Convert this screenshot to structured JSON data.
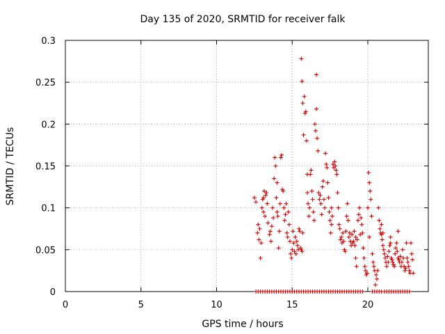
{
  "chart_data": {
    "type": "scatter",
    "title": "Day 135 of 2020, SRMTID for receiver falk",
    "xlabel": "GPS time / hours",
    "ylabel": "SRMTID / TECUs",
    "xlim": [
      0,
      24
    ],
    "ylim": [
      0,
      0.3
    ],
    "xticks": [
      0,
      5,
      10,
      15,
      20
    ],
    "xtick_labels": [
      "0",
      "5",
      "10",
      "15",
      "20"
    ],
    "yticks": [
      0,
      0.05,
      0.1,
      0.15,
      0.2,
      0.25,
      0.3
    ],
    "ytick_labels": [
      "0",
      "0.05",
      "0.1",
      "0.15",
      "0.2",
      "0.25",
      "0.3"
    ],
    "grid": true,
    "marker": "+",
    "color": "#cc0000",
    "series": [
      {
        "name": "SRMTID",
        "points": [
          [
            12.5,
            0.112
          ],
          [
            12.6,
            0.107
          ],
          [
            12.7,
            0.07
          ],
          [
            12.75,
            0.08
          ],
          [
            12.8,
            0.062
          ],
          [
            12.85,
            0.075
          ],
          [
            12.9,
            0.04
          ],
          [
            12.95,
            0.058
          ],
          [
            13.0,
            0.1
          ],
          [
            13.05,
            0.11
          ],
          [
            13.1,
            0.095
          ],
          [
            13.15,
            0.12
          ],
          [
            13.2,
            0.09
          ],
          [
            13.25,
            0.115
          ],
          [
            13.3,
            0.118
          ],
          [
            13.35,
            0.105
          ],
          [
            13.4,
            0.082
          ],
          [
            13.5,
            0.068
          ],
          [
            13.55,
            0.072
          ],
          [
            13.6,
            0.06
          ],
          [
            13.65,
            0.078
          ],
          [
            13.7,
            0.1
          ],
          [
            13.75,
            0.088
          ],
          [
            13.8,
            0.135
          ],
          [
            13.85,
            0.16
          ],
          [
            13.9,
            0.15
          ],
          [
            13.95,
            0.112
          ],
          [
            14.0,
            0.095
          ],
          [
            14.05,
            0.09
          ],
          [
            14.1,
            0.052
          ],
          [
            14.15,
            0.072
          ],
          [
            14.2,
            0.105
          ],
          [
            14.25,
            0.16
          ],
          [
            14.3,
            0.163
          ],
          [
            14.35,
            0.122
          ],
          [
            14.4,
            0.12
          ],
          [
            14.45,
            0.1
          ],
          [
            14.5,
            0.085
          ],
          [
            14.55,
            0.092
          ],
          [
            14.6,
            0.105
          ],
          [
            14.65,
            0.07
          ],
          [
            14.7,
            0.065
          ],
          [
            14.75,
            0.095
          ],
          [
            14.8,
            0.08
          ],
          [
            14.85,
            0.06
          ],
          [
            14.9,
            0.045
          ],
          [
            14.95,
            0.04
          ],
          [
            15.0,
            0.05
          ],
          [
            15.05,
            0.072
          ],
          [
            15.1,
            0.058
          ],
          [
            15.15,
            0.048
          ],
          [
            15.2,
            0.065
          ],
          [
            15.25,
            0.045
          ],
          [
            15.3,
            0.06
          ],
          [
            15.35,
            0.055
          ],
          [
            15.4,
            0.05
          ],
          [
            15.45,
            0.075
          ],
          [
            15.5,
            0.072
          ],
          [
            15.55,
            0.052
          ],
          [
            15.6,
            0.05
          ],
          [
            15.65,
            0.048
          ],
          [
            15.7,
            0.07
          ],
          [
            15.6,
            0.278
          ],
          [
            15.65,
            0.251
          ],
          [
            15.7,
            0.225
          ],
          [
            15.75,
            0.187
          ],
          [
            15.8,
            0.233
          ],
          [
            15.85,
            0.213
          ],
          [
            15.9,
            0.215
          ],
          [
            15.95,
            0.18
          ],
          [
            16.0,
            0.118
          ],
          [
            16.05,
            0.105
          ],
          [
            16.1,
            0.09
          ],
          [
            16.15,
            0.1
          ],
          [
            16.2,
            0.14
          ],
          [
            16.25,
            0.145
          ],
          [
            16.3,
            0.12
          ],
          [
            16.35,
            0.11
          ],
          [
            16.4,
            0.095
          ],
          [
            16.45,
            0.085
          ],
          [
            16.5,
            0.2
          ],
          [
            16.55,
            0.192
          ],
          [
            16.6,
            0.218
          ],
          [
            16.6,
            0.259
          ],
          [
            16.65,
            0.183
          ],
          [
            16.7,
            0.168
          ],
          [
            16.75,
            0.118
          ],
          [
            16.8,
            0.11
          ],
          [
            16.85,
            0.115
          ],
          [
            16.9,
            0.105
          ],
          [
            16.95,
            0.092
          ],
          [
            17.0,
            0.125
          ],
          [
            17.05,
            0.132
          ],
          [
            17.1,
            0.11
          ],
          [
            17.15,
            0.1
          ],
          [
            17.2,
            0.165
          ],
          [
            17.25,
            0.152
          ],
          [
            17.3,
            0.148
          ],
          [
            17.35,
            0.13
          ],
          [
            17.4,
            0.112
          ],
          [
            17.45,
            0.095
          ],
          [
            17.5,
            0.085
          ],
          [
            17.55,
            0.07
          ],
          [
            17.6,
            0.08
          ],
          [
            17.65,
            0.09
          ],
          [
            17.7,
            0.152
          ],
          [
            17.75,
            0.148
          ],
          [
            17.8,
            0.155
          ],
          [
            17.85,
            0.15
          ],
          [
            17.9,
            0.145
          ],
          [
            17.95,
            0.14
          ],
          [
            18.0,
            0.118
          ],
          [
            18.05,
            0.1
          ],
          [
            18.1,
            0.08
          ],
          [
            18.15,
            0.075
          ],
          [
            18.2,
            0.062
          ],
          [
            18.25,
            0.065
          ],
          [
            18.3,
            0.058
          ],
          [
            18.35,
            0.07
          ],
          [
            18.4,
            0.06
          ],
          [
            18.45,
            0.05
          ],
          [
            18.5,
            0.048
          ],
          [
            18.55,
            0.072
          ],
          [
            18.6,
            0.09
          ],
          [
            18.65,
            0.105
          ],
          [
            18.7,
            0.085
          ],
          [
            18.75,
            0.065
          ],
          [
            18.8,
            0.07
          ],
          [
            18.85,
            0.06
          ],
          [
            18.9,
            0.055
          ],
          [
            18.95,
            0.068
          ],
          [
            19.0,
            0.058
          ],
          [
            19.05,
            0.06
          ],
          [
            19.1,
            0.072
          ],
          [
            19.15,
            0.055
          ],
          [
            19.2,
            0.04
          ],
          [
            19.25,
            0.03
          ],
          [
            19.3,
            0.062
          ],
          [
            19.35,
            0.085
          ],
          [
            19.4,
            0.092
          ],
          [
            19.45,
            0.1
          ],
          [
            19.5,
            0.068
          ],
          [
            19.55,
            0.088
          ],
          [
            19.6,
            0.08
          ],
          [
            19.65,
            0.07
          ],
          [
            19.7,
            0.052
          ],
          [
            19.75,
            0.04
          ],
          [
            19.8,
            0.03
          ],
          [
            19.85,
            0.025
          ],
          [
            19.9,
            0.02
          ],
          [
            19.95,
            0.022
          ],
          [
            20.0,
            0.1
          ],
          [
            20.05,
            0.142
          ],
          [
            20.1,
            0.13
          ],
          [
            20.15,
            0.12
          ],
          [
            20.2,
            0.11
          ],
          [
            20.25,
            0.09
          ],
          [
            20.3,
            0.045
          ],
          [
            20.35,
            0.035
          ],
          [
            20.4,
            0.03
          ],
          [
            20.45,
            0.025
          ],
          [
            20.5,
            0.008
          ],
          [
            20.55,
            0.02
          ],
          [
            20.6,
            0.015
          ],
          [
            20.65,
            0.025
          ],
          [
            20.7,
            0.1
          ],
          [
            20.75,
            0.085
          ],
          [
            20.8,
            0.075
          ],
          [
            20.85,
            0.07
          ],
          [
            20.9,
            0.068
          ],
          [
            20.95,
            0.062
          ],
          [
            21.0,
            0.055
          ],
          [
            21.05,
            0.05
          ],
          [
            21.1,
            0.045
          ],
          [
            21.15,
            0.04
          ],
          [
            21.2,
            0.035
          ],
          [
            21.25,
            0.03
          ],
          [
            21.3,
            0.042
          ],
          [
            21.35,
            0.035
          ],
          [
            21.4,
            0.048
          ],
          [
            21.45,
            0.055
          ],
          [
            21.5,
            0.058
          ],
          [
            21.55,
            0.04
          ],
          [
            21.6,
            0.038
          ],
          [
            21.65,
            0.035
          ],
          [
            21.7,
            0.032
          ],
          [
            21.75,
            0.03
          ],
          [
            21.8,
            0.045
          ],
          [
            21.85,
            0.052
          ],
          [
            21.9,
            0.058
          ],
          [
            21.95,
            0.048
          ],
          [
            22.0,
            0.04
          ],
          [
            22.05,
            0.038
          ],
          [
            22.1,
            0.035
          ],
          [
            22.15,
            0.042
          ],
          [
            22.2,
            0.03
          ],
          [
            22.25,
            0.035
          ],
          [
            22.3,
            0.05
          ],
          [
            22.35,
            0.04
          ],
          [
            22.4,
            0.03
          ],
          [
            22.45,
            0.025
          ],
          [
            22.5,
            0.028
          ],
          [
            22.55,
            0.058
          ],
          [
            22.6,
            0.04
          ],
          [
            22.65,
            0.035
          ],
          [
            22.7,
            0.03
          ],
          [
            22.75,
            0.025
          ],
          [
            22.8,
            0.022
          ],
          [
            22.85,
            0.058
          ],
          [
            22.9,
            0.045
          ],
          [
            22.95,
            0.038
          ],
          [
            23.0,
            0.022
          ],
          [
            22.0,
            0.072
          ],
          [
            21.5,
            0.065
          ],
          [
            20.9,
            0.08
          ],
          [
            13.1,
            0.112
          ],
          [
            14.0,
            0.13
          ],
          [
            16.0,
            0.14
          ],
          [
            17.6,
            0.1
          ],
          [
            19.2,
            0.065
          ],
          [
            20.1,
            0.065
          ],
          [
            21.0,
            0.07
          ]
        ]
      },
      {
        "name": "zero-baseline",
        "points": [
          [
            12.6,
            0
          ],
          [
            12.75,
            0
          ],
          [
            12.9,
            0
          ],
          [
            13.05,
            0
          ],
          [
            13.2,
            0
          ],
          [
            13.35,
            0
          ],
          [
            13.5,
            0
          ],
          [
            13.65,
            0
          ],
          [
            13.8,
            0
          ],
          [
            13.95,
            0
          ],
          [
            14.1,
            0
          ],
          [
            14.25,
            0
          ],
          [
            14.4,
            0
          ],
          [
            14.55,
            0
          ],
          [
            14.7,
            0
          ],
          [
            14.85,
            0
          ],
          [
            15.0,
            0
          ],
          [
            15.15,
            0
          ],
          [
            15.3,
            0
          ],
          [
            15.45,
            0
          ],
          [
            15.6,
            0
          ],
          [
            15.75,
            0
          ],
          [
            15.9,
            0
          ],
          [
            16.05,
            0
          ],
          [
            16.2,
            0
          ],
          [
            16.35,
            0
          ],
          [
            16.5,
            0
          ],
          [
            16.65,
            0
          ],
          [
            16.8,
            0
          ],
          [
            16.95,
            0
          ],
          [
            17.1,
            0
          ],
          [
            17.25,
            0
          ],
          [
            17.4,
            0
          ],
          [
            17.55,
            0
          ],
          [
            17.7,
            0
          ],
          [
            17.85,
            0
          ],
          [
            18.0,
            0
          ],
          [
            18.15,
            0
          ],
          [
            18.3,
            0
          ],
          [
            18.45,
            0
          ],
          [
            18.6,
            0
          ],
          [
            18.75,
            0
          ],
          [
            18.9,
            0
          ],
          [
            19.05,
            0
          ],
          [
            19.2,
            0
          ],
          [
            19.35,
            0
          ],
          [
            19.5,
            0
          ],
          [
            19.65,
            0
          ],
          [
            20.3,
            0
          ],
          [
            20.45,
            0
          ],
          [
            20.6,
            0
          ],
          [
            20.75,
            0
          ],
          [
            20.9,
            0
          ],
          [
            21.1,
            0
          ],
          [
            21.25,
            0
          ],
          [
            21.4,
            0
          ],
          [
            21.55,
            0
          ],
          [
            21.7,
            0
          ],
          [
            21.85,
            0
          ],
          [
            22.0,
            0
          ],
          [
            22.15,
            0
          ],
          [
            22.3,
            0
          ],
          [
            22.45,
            0
          ],
          [
            22.6,
            0
          ],
          [
            22.75,
            0
          ]
        ]
      }
    ]
  }
}
